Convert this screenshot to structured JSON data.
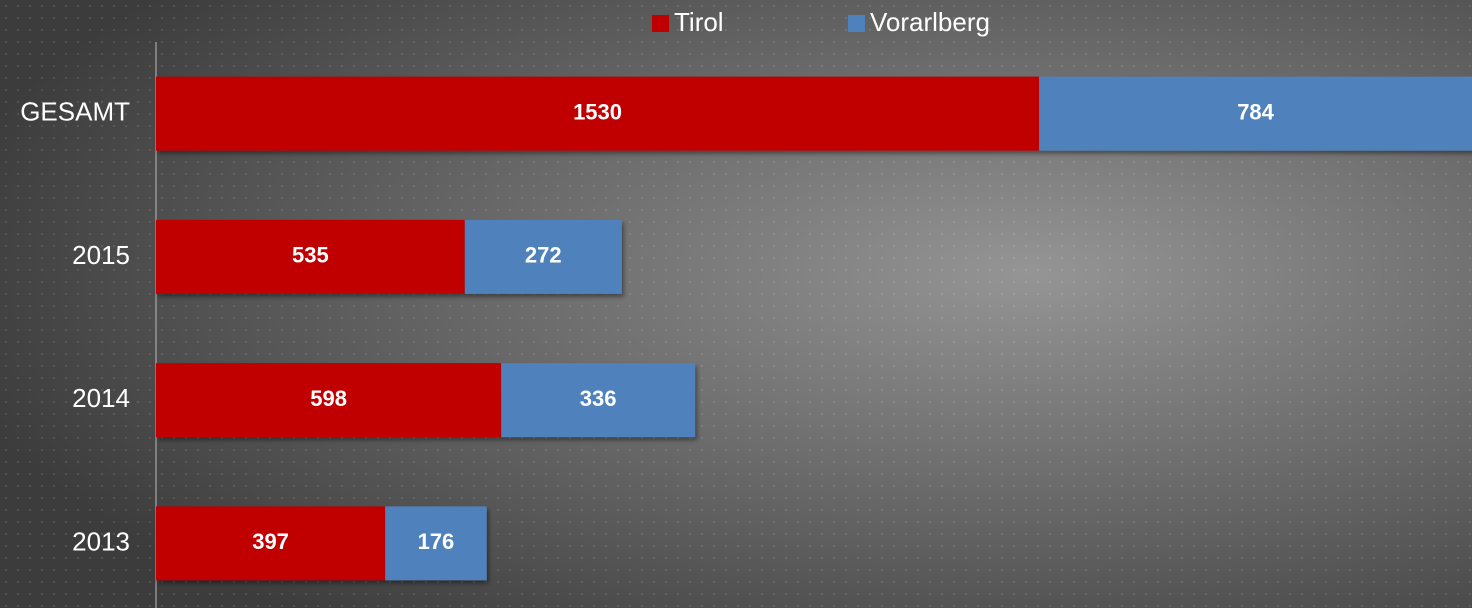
{
  "chart_data": {
    "type": "bar",
    "orientation": "horizontal",
    "stacked": true,
    "categories": [
      "GESAMT",
      "2015",
      "2014",
      "2013"
    ],
    "series": [
      {
        "name": "Tirol",
        "color": "#c00000",
        "values": [
          1530,
          535,
          598,
          397
        ]
      },
      {
        "name": "Vorarlberg",
        "color": "#4f81bd",
        "values": [
          784,
          272,
          336,
          176
        ]
      }
    ],
    "xlim": [
      0,
      2280
    ],
    "legend": "top"
  }
}
